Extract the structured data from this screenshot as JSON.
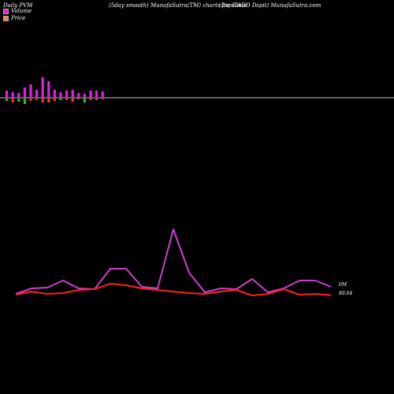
{
  "header": {
    "left": "Daily PVM",
    "center": "(5day smooth) MunafaSutra(TM) charts for ITADD",
    "right": "(Dspsome - Dspit) MunafaSutra.com"
  },
  "legend": {
    "volume_label": "Volume",
    "price_label": "Price",
    "volume_color": "#e020e0",
    "price_color": "#ff4040"
  },
  "labels": {
    "volume_value": "0M",
    "price_value": "89.64"
  },
  "chart_data": [
    {
      "type": "bar",
      "description_free": true,
      "x": [
        1,
        2,
        3,
        4,
        5,
        6,
        7,
        8,
        9,
        10,
        11,
        12,
        13,
        14,
        15,
        16,
        17,
        18,
        19
      ],
      "series": [
        {
          "values": [
            9,
            7,
            6,
            13,
            17,
            10,
            26,
            21,
            10,
            7,
            9,
            10,
            6,
            5,
            9,
            9,
            8,
            0,
            0
          ]
        },
        {
          "values": [
            -3,
            -5,
            -4,
            -7,
            -3,
            -2,
            -5,
            -5,
            -3,
            -2,
            -2,
            -4,
            -1,
            -5,
            -2,
            -2,
            -1,
            0,
            0
          ]
        }
      ],
      "colors": {
        "positive": "#e020e0",
        "negative_up": "#ff3030",
        "negative_down": "#20c020"
      },
      "bar_colors": [
        "#e020e0",
        "#e020e0",
        "#e020e0",
        "#e020e0",
        "#e020e0",
        "#e020e0",
        "#e020e0",
        "#e020e0",
        "#e020e0",
        "#e020e0",
        "#e020e0",
        "#e020e0",
        "#e020e0",
        "#e020e0",
        "#e020e0",
        "#e020e0",
        "#e020e0",
        "#e020e0",
        "#e020e0"
      ],
      "neg_colors": [
        "#20c020",
        "#ff3030",
        "#20c020",
        "#20c020",
        "#ff3030",
        "#ff3030",
        "#ff3030",
        "#ff3030",
        "#ff3030",
        "#20c020",
        "#ff3030",
        "#ff3030",
        "#ff3030",
        "#20c020",
        "#ff3030",
        "#ff3030",
        "#ff3030",
        "#ff3030",
        "#ff3030"
      ]
    },
    {
      "type": "line",
      "x": [
        1,
        2,
        3,
        4,
        5,
        6,
        7,
        8,
        9,
        10,
        11,
        12,
        13,
        14,
        15,
        16,
        17,
        18,
        19,
        20,
        21
      ],
      "series": [
        {
          "color": "#cc40cc",
          "values": [
            0.3,
            1.0,
            1.1,
            2.0,
            1.0,
            0.9,
            3.5,
            3.5,
            1.2,
            1.0,
            8.5,
            3.0,
            0.5,
            1.0,
            0.9,
            2.2,
            0.5,
            1.0,
            2.0,
            2.0,
            1.2
          ]
        },
        {
          "color": "#ff2020",
          "values": [
            0.2,
            0.6,
            0.3,
            0.4,
            0.8,
            0.9,
            1.6,
            1.4,
            1.0,
            0.8,
            0.6,
            0.4,
            0.3,
            0.6,
            0.8,
            0.1,
            0.3,
            0.9,
            0.2,
            0.3,
            0.15
          ]
        }
      ],
      "grid": false
    }
  ]
}
